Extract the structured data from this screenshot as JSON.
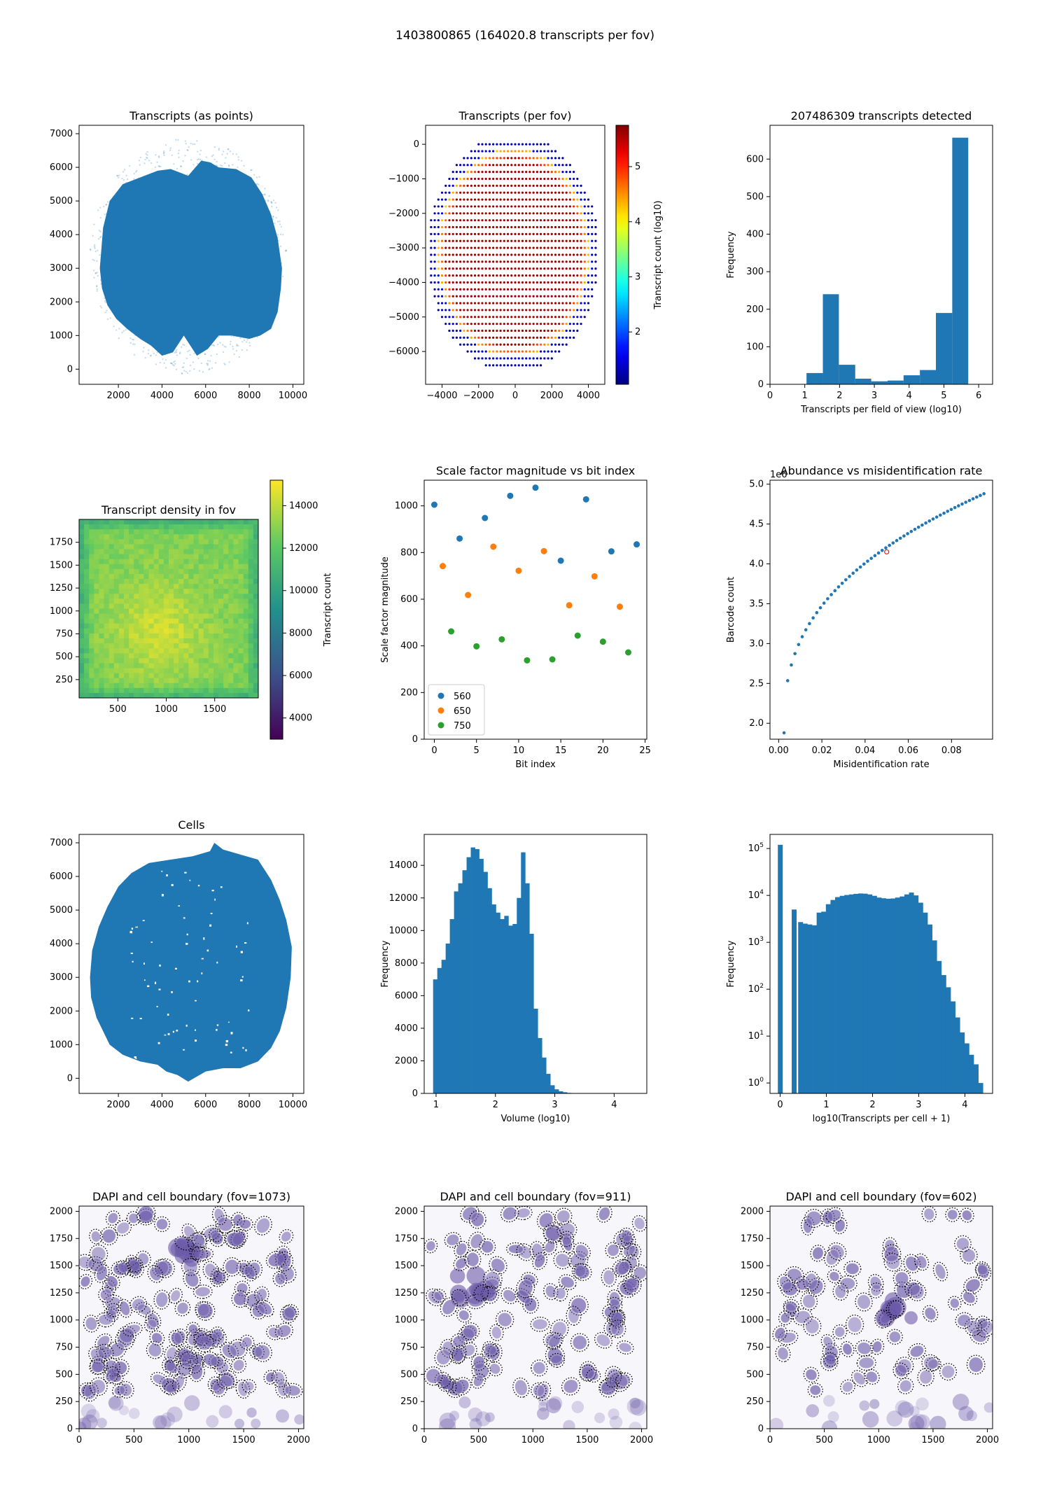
{
  "figure": {
    "suptitle": "1403800865 (164020.8 transcripts per fov)",
    "colors": {
      "tab_blue": "#1f77b4",
      "tab_orange": "#ff7f0e",
      "tab_green": "#2ca02c",
      "dapi": "#6a5aa8",
      "boundary": "#000000"
    }
  },
  "chart_data": [
    {
      "id": "p1",
      "type": "scatter",
      "title": "Transcripts (as points)",
      "xlim": [
        200,
        10500
      ],
      "ylim": [
        -450,
        7250
      ],
      "xticks": [
        2000,
        4000,
        6000,
        8000,
        10000
      ],
      "yticks": [
        0,
        1000,
        2000,
        3000,
        4000,
        5000,
        6000,
        7000
      ],
      "outline_x": [
        1150,
        1300,
        1600,
        2200,
        3000,
        3800,
        4400,
        4800,
        5200,
        5800,
        6200,
        6600,
        7400,
        8100,
        8600,
        9000,
        9300,
        9500,
        9450,
        9300,
        9000,
        8500,
        8000,
        7200,
        6600,
        6100,
        5600,
        5000,
        4500,
        4000,
        3500,
        3000,
        2400,
        1900,
        1500,
        1250
      ],
      "outline_y": [
        3000,
        4200,
        5000,
        5500,
        5700,
        5900,
        5950,
        5850,
        5750,
        6200,
        6150,
        6000,
        5950,
        5700,
        5200,
        4600,
        3900,
        3000,
        2400,
        1700,
        1200,
        1000,
        900,
        1000,
        1000,
        600,
        400,
        1000,
        500,
        400,
        700,
        900,
        1200,
        1500,
        1900,
        2400
      ],
      "xlabel": "",
      "ylabel": ""
    },
    {
      "id": "p2",
      "type": "scatter",
      "title": "Transcripts (per fov)",
      "xlim": [
        -4900,
        4900
      ],
      "ylim": [
        -6950,
        550
      ],
      "xticks": [
        -4000,
        -2000,
        0,
        2000,
        4000
      ],
      "xtick_labels": [
        "−4000",
        "−2000",
        "0",
        "2000",
        "4000"
      ],
      "yticks": [
        0,
        -1000,
        -2000,
        -3000,
        -4000,
        -5000,
        -6000
      ],
      "ytick_labels": [
        "0",
        "−1000",
        "−2000",
        "−3000",
        "−4000",
        "−5000",
        "−6000"
      ],
      "colorbar_label": "Transcript count (log10)",
      "colorbar_range": [
        1.05,
        5.75
      ],
      "colorbar_ticks": [
        2,
        3,
        4,
        5
      ],
      "grid_spacing": 200,
      "ellipse_center": [
        -100,
        -3150
      ],
      "ellipse_radius": [
        4700,
        3450
      ],
      "xlabel": "",
      "ylabel": ""
    },
    {
      "id": "p3",
      "type": "bar",
      "title": "207486309 transcripts detected",
      "xlabel": "Transcripts per field of view (log10)",
      "ylabel": "Frequency",
      "xlim": [
        0,
        6.4
      ],
      "ylim": [
        0,
        690
      ],
      "xticks": [
        0,
        1,
        2,
        3,
        4,
        5,
        6
      ],
      "yticks": [
        0,
        100,
        200,
        300,
        400,
        500,
        600
      ],
      "bin_edges": [
        1.05,
        1.52,
        1.98,
        2.45,
        2.91,
        3.38,
        3.84,
        4.31,
        4.77,
        5.24,
        5.7
      ],
      "values": [
        30,
        240,
        52,
        15,
        8,
        10,
        24,
        38,
        190,
        657
      ]
    },
    {
      "id": "p4",
      "type": "heatmap",
      "title": "Transcript density in fov",
      "xlim": [
        100,
        1950
      ],
      "ylim": [
        50,
        2000
      ],
      "xticks": [
        500,
        1000,
        1500
      ],
      "yticks": [
        250,
        500,
        750,
        1000,
        1250,
        1500,
        1750
      ],
      "colorbar_label": "Transcript count",
      "colorbar_range": [
        3000,
        15200
      ],
      "colorbar_ticks": [
        4000,
        6000,
        8000,
        10000,
        12000,
        14000
      ]
    },
    {
      "id": "p5",
      "type": "scatter",
      "title": "Scale factor magnitude vs bit index",
      "xlabel": "Bit index",
      "ylabel": "Scale factor magnitude",
      "xlim": [
        -1.2,
        25.2
      ],
      "ylim": [
        0,
        1110
      ],
      "xticks": [
        0,
        5,
        10,
        15,
        20,
        25
      ],
      "yticks": [
        0,
        200,
        400,
        600,
        800,
        1000
      ],
      "legend_position": "lower left",
      "series": [
        {
          "name": "560",
          "x": [
            0,
            3,
            6,
            9,
            12,
            15,
            18,
            21,
            24
          ],
          "y": [
            1005,
            860,
            948,
            1043,
            1078,
            765,
            1028,
            805,
            835
          ]
        },
        {
          "name": "650",
          "x": [
            1,
            4,
            7,
            10,
            13,
            16,
            19,
            22
          ],
          "y": [
            742,
            618,
            825,
            722,
            806,
            574,
            698,
            568
          ]
        },
        {
          "name": "750",
          "x": [
            2,
            5,
            8,
            11,
            14,
            17,
            20,
            23
          ],
          "y": [
            462,
            398,
            428,
            338,
            342,
            444,
            418,
            372
          ]
        }
      ]
    },
    {
      "id": "p6",
      "type": "scatter",
      "title": "Abundance vs misidentification rate",
      "xlabel": "Misidentification rate",
      "ylabel": "Barcode count",
      "offset_label": "1e6",
      "xlim": [
        -0.004,
        0.099
      ],
      "ylim": [
        1.8,
        5.05
      ],
      "xticks": [
        0.0,
        0.02,
        0.04,
        0.06,
        0.08
      ],
      "xtick_labels": [
        "0.00",
        "0.02",
        "0.04",
        "0.06",
        "0.08"
      ],
      "yticks": [
        2.0,
        2.5,
        3.0,
        3.5,
        4.0,
        4.5,
        5.0
      ],
      "curve": {
        "x_start": 0.0025,
        "x_end": 0.095,
        "y_start": 1.88,
        "y_end": 4.88,
        "points": 56,
        "exponent": 0.38
      },
      "highlight": {
        "x": 0.05,
        "y": 4.15,
        "color": "#d62728"
      }
    },
    {
      "id": "p7",
      "type": "scatter",
      "title": "Cells",
      "xlim": [
        200,
        10500
      ],
      "ylim": [
        -450,
        7250
      ],
      "xticks": [
        2000,
        4000,
        6000,
        8000,
        10000
      ],
      "yticks": [
        0,
        1000,
        2000,
        3000,
        4000,
        5000,
        6000,
        7000
      ],
      "outline_x": [
        700,
        800,
        1100,
        1500,
        2000,
        2600,
        3400,
        4400,
        5400,
        6200,
        6400,
        6800,
        7600,
        8400,
        9000,
        9400,
        9700,
        9950,
        9900,
        9700,
        9400,
        9000,
        8400,
        7600,
        6800,
        6000,
        5200,
        4700,
        4200,
        3800,
        3000,
        2200,
        1600,
        1000,
        750
      ],
      "outline_y": [
        3000,
        3800,
        4500,
        5100,
        5700,
        6100,
        6400,
        6500,
        6600,
        6750,
        7000,
        6800,
        6650,
        6500,
        5900,
        5300,
        4700,
        3900,
        3000,
        2100,
        1400,
        900,
        500,
        300,
        300,
        200,
        -100,
        100,
        200,
        400,
        500,
        700,
        1000,
        1800,
        2400
      ],
      "xlabel": "",
      "ylabel": ""
    },
    {
      "id": "p8",
      "type": "bar",
      "title": "",
      "xlabel": "Volume (log10)",
      "ylabel": "Frequency",
      "xlim": [
        0.8,
        4.55
      ],
      "ylim": [
        0,
        15900
      ],
      "xticks": [
        1,
        2,
        3,
        4
      ],
      "yticks": [
        0,
        2000,
        4000,
        6000,
        8000,
        10000,
        12000,
        14000
      ],
      "bin_start": 0.95,
      "bin_width": 0.0705,
      "values": [
        7000,
        7700,
        8200,
        9200,
        10700,
        12400,
        12900,
        13700,
        14500,
        15100,
        15000,
        14400,
        13600,
        12600,
        11600,
        11100,
        10700,
        10900,
        10300,
        10400,
        12000,
        14800,
        12900,
        9800,
        5200,
        3400,
        2200,
        1200,
        500,
        250,
        130,
        70,
        30,
        10
      ]
    },
    {
      "id": "p9",
      "type": "bar",
      "title": "",
      "xlabel": "log10(Transcripts per cell + 1)",
      "ylabel": "Frequency",
      "yscale": "log",
      "xlim": [
        -0.22,
        4.6
      ],
      "ylim": [
        0.6,
        200000
      ],
      "xticks": [
        0,
        1,
        2,
        3,
        4
      ],
      "yticks": [
        1,
        10,
        100,
        1000,
        10000,
        100000
      ],
      "ytick_labels": [
        [
          "10",
          "0"
        ],
        [
          "10",
          "1"
        ],
        [
          "10",
          "2"
        ],
        [
          "10",
          "3"
        ],
        [
          "10",
          "4"
        ],
        [
          "10",
          "5"
        ]
      ],
      "bin_width": 0.1,
      "bin_starts": [
        -0.05,
        0.25,
        0.39,
        0.49,
        0.59,
        0.69,
        0.79,
        0.89,
        0.99,
        1.09,
        1.19,
        1.29,
        1.39,
        1.49,
        1.59,
        1.69,
        1.79,
        1.89,
        1.99,
        2.09,
        2.19,
        2.29,
        2.39,
        2.49,
        2.59,
        2.69,
        2.79,
        2.89,
        2.99,
        3.09,
        3.19,
        3.29,
        3.39,
        3.49,
        3.59,
        3.69,
        3.79,
        3.89,
        3.99,
        4.09,
        4.19,
        4.29
      ],
      "values": [
        120000,
        5000,
        2700,
        2500,
        2400,
        2300,
        4300,
        4500,
        6500,
        8000,
        9200,
        9800,
        10200,
        10500,
        10800,
        11000,
        10900,
        10500,
        9800,
        9000,
        8700,
        8500,
        8600,
        9000,
        9500,
        10500,
        11500,
        10000,
        7000,
        4300,
        2400,
        1100,
        400,
        200,
        110,
        55,
        25,
        12,
        7,
        4,
        2.5,
        1
      ]
    },
    {
      "id": "p10",
      "type": "scatter",
      "title": "DAPI and cell boundary (fov=1073)",
      "xlim": [
        0,
        2048
      ],
      "ylim": [
        0,
        2048
      ],
      "xticks": [
        0,
        500,
        1000,
        1500,
        2000
      ],
      "yticks": [
        0,
        250,
        500,
        750,
        1000,
        1250,
        1500,
        1750,
        2000
      ],
      "seed": 1073,
      "nuclei": 150,
      "bright_cluster": [
        1000,
        1580
      ],
      "xlabel": "",
      "ylabel": ""
    },
    {
      "id": "p11",
      "type": "scatter",
      "title": "DAPI and cell boundary (fov=911)",
      "xlim": [
        0,
        2048
      ],
      "ylim": [
        0,
        2048
      ],
      "xticks": [
        0,
        500,
        1000,
        1500,
        2000
      ],
      "yticks": [
        0,
        250,
        500,
        750,
        1000,
        1250,
        1500,
        1750,
        2000
      ],
      "seed": 911,
      "nuclei": 120,
      "bright_cluster": [
        450,
        1300
      ],
      "xlabel": "",
      "ylabel": ""
    },
    {
      "id": "p12",
      "type": "scatter",
      "title": "DAPI and cell boundary (fov=602)",
      "xlim": [
        0,
        2048
      ],
      "ylim": [
        0,
        2048
      ],
      "xticks": [
        0,
        500,
        1000,
        1500,
        2000
      ],
      "yticks": [
        0,
        250,
        500,
        750,
        1000,
        1250,
        1500,
        1750,
        2000
      ],
      "seed": 602,
      "nuclei": 85,
      "bright_cluster": [
        1150,
        1100
      ],
      "xlabel": "",
      "ylabel": ""
    }
  ]
}
